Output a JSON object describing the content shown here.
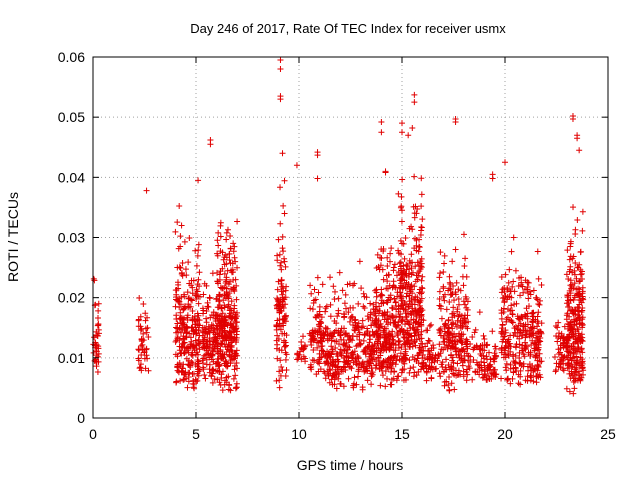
{
  "chart_data": {
    "type": "scatter",
    "title": "Day 246 of 2017, Rate Of TEC Index for receiver usmx",
    "xlabel": "GPS time / hours",
    "ylabel": "ROTI / TECUs",
    "xlim": [
      0,
      25
    ],
    "ylim": [
      0,
      0.06
    ],
    "x_ticks": [
      0,
      5,
      10,
      15,
      20,
      25
    ],
    "x_tick_labels": [
      "0",
      "5",
      "10",
      "15",
      "20",
      "25"
    ],
    "y_ticks": [
      0,
      0.01,
      0.02,
      0.03,
      0.04,
      0.05,
      0.06
    ],
    "y_tick_labels": [
      "0",
      "0.01",
      "0.02",
      "0.03",
      "0.04",
      "0.05",
      "0.06"
    ],
    "grid": true,
    "marker": "plus",
    "color": "#e00000",
    "clusters": [
      {
        "x": [
          0.0,
          0.3
        ],
        "y_range": [
          0.007,
          0.025
        ],
        "density": 40
      },
      {
        "x": [
          2.2,
          2.7
        ],
        "y_range": [
          0.007,
          0.026
        ],
        "density": 45
      },
      {
        "x": [
          4.0,
          5.2
        ],
        "y_range": [
          0.004,
          0.038
        ],
        "density": 260
      },
      {
        "x": [
          5.3,
          6.0
        ],
        "y_range": [
          0.005,
          0.03
        ],
        "density": 120
      },
      {
        "x": [
          6.0,
          7.0
        ],
        "y_range": [
          0.004,
          0.039
        ],
        "density": 320
      },
      {
        "x": [
          8.9,
          9.4
        ],
        "y_range": [
          0.005,
          0.043
        ],
        "density": 110
      },
      {
        "x": [
          9.9,
          10.3
        ],
        "y_range": [
          0.009,
          0.015
        ],
        "density": 20
      },
      {
        "x": [
          10.5,
          11.2
        ],
        "y_range": [
          0.007,
          0.028
        ],
        "density": 90
      },
      {
        "x": [
          11.2,
          13.6
        ],
        "y_range": [
          0.004,
          0.028
        ],
        "density": 330
      },
      {
        "x": [
          13.6,
          14.8
        ],
        "y_range": [
          0.005,
          0.035
        ],
        "density": 260
      },
      {
        "x": [
          14.8,
          16.0
        ],
        "y_range": [
          0.006,
          0.048
        ],
        "density": 330
      },
      {
        "x": [
          16.0,
          16.8
        ],
        "y_range": [
          0.006,
          0.018
        ],
        "density": 60
      },
      {
        "x": [
          16.8,
          18.2
        ],
        "y_range": [
          0.004,
          0.033
        ],
        "density": 230
      },
      {
        "x": [
          18.2,
          19.0
        ],
        "y_range": [
          0.006,
          0.02
        ],
        "density": 50
      },
      {
        "x": [
          19.0,
          19.6
        ],
        "y_range": [
          0.006,
          0.016
        ],
        "density": 50
      },
      {
        "x": [
          19.8,
          21.8
        ],
        "y_range": [
          0.005,
          0.032
        ],
        "density": 310
      },
      {
        "x": [
          22.4,
          23.0
        ],
        "y_range": [
          0.007,
          0.02
        ],
        "density": 50
      },
      {
        "x": [
          23.0,
          23.8
        ],
        "y_range": [
          0.004,
          0.04
        ],
        "density": 260
      }
    ],
    "outliers": [
      {
        "x": 2.6,
        "y": 0.0378
      },
      {
        "x": 5.1,
        "y": 0.0395
      },
      {
        "x": 5.7,
        "y": 0.0455
      },
      {
        "x": 5.7,
        "y": 0.0462
      },
      {
        "x": 9.1,
        "y": 0.0595
      },
      {
        "x": 9.1,
        "y": 0.058
      },
      {
        "x": 9.1,
        "y": 0.0535
      },
      {
        "x": 9.1,
        "y": 0.053
      },
      {
        "x": 9.2,
        "y": 0.044
      },
      {
        "x": 9.9,
        "y": 0.042
      },
      {
        "x": 10.9,
        "y": 0.0442
      },
      {
        "x": 10.9,
        "y": 0.0437
      },
      {
        "x": 10.9,
        "y": 0.0398
      },
      {
        "x": 14.0,
        "y": 0.0492
      },
      {
        "x": 14.0,
        "y": 0.0475
      },
      {
        "x": 14.2,
        "y": 0.041
      },
      {
        "x": 14.2,
        "y": 0.0408
      },
      {
        "x": 15.0,
        "y": 0.049
      },
      {
        "x": 15.0,
        "y": 0.0475
      },
      {
        "x": 15.3,
        "y": 0.047
      },
      {
        "x": 15.5,
        "y": 0.0482
      },
      {
        "x": 15.6,
        "y": 0.0537
      },
      {
        "x": 15.6,
        "y": 0.0525
      },
      {
        "x": 17.6,
        "y": 0.0497
      },
      {
        "x": 17.6,
        "y": 0.0492
      },
      {
        "x": 19.4,
        "y": 0.0405
      },
      {
        "x": 19.4,
        "y": 0.0398
      },
      {
        "x": 20.0,
        "y": 0.0425
      },
      {
        "x": 23.3,
        "y": 0.0502
      },
      {
        "x": 23.3,
        "y": 0.0497
      },
      {
        "x": 23.5,
        "y": 0.047
      },
      {
        "x": 23.5,
        "y": 0.0465
      },
      {
        "x": 23.6,
        "y": 0.0445
      }
    ]
  }
}
